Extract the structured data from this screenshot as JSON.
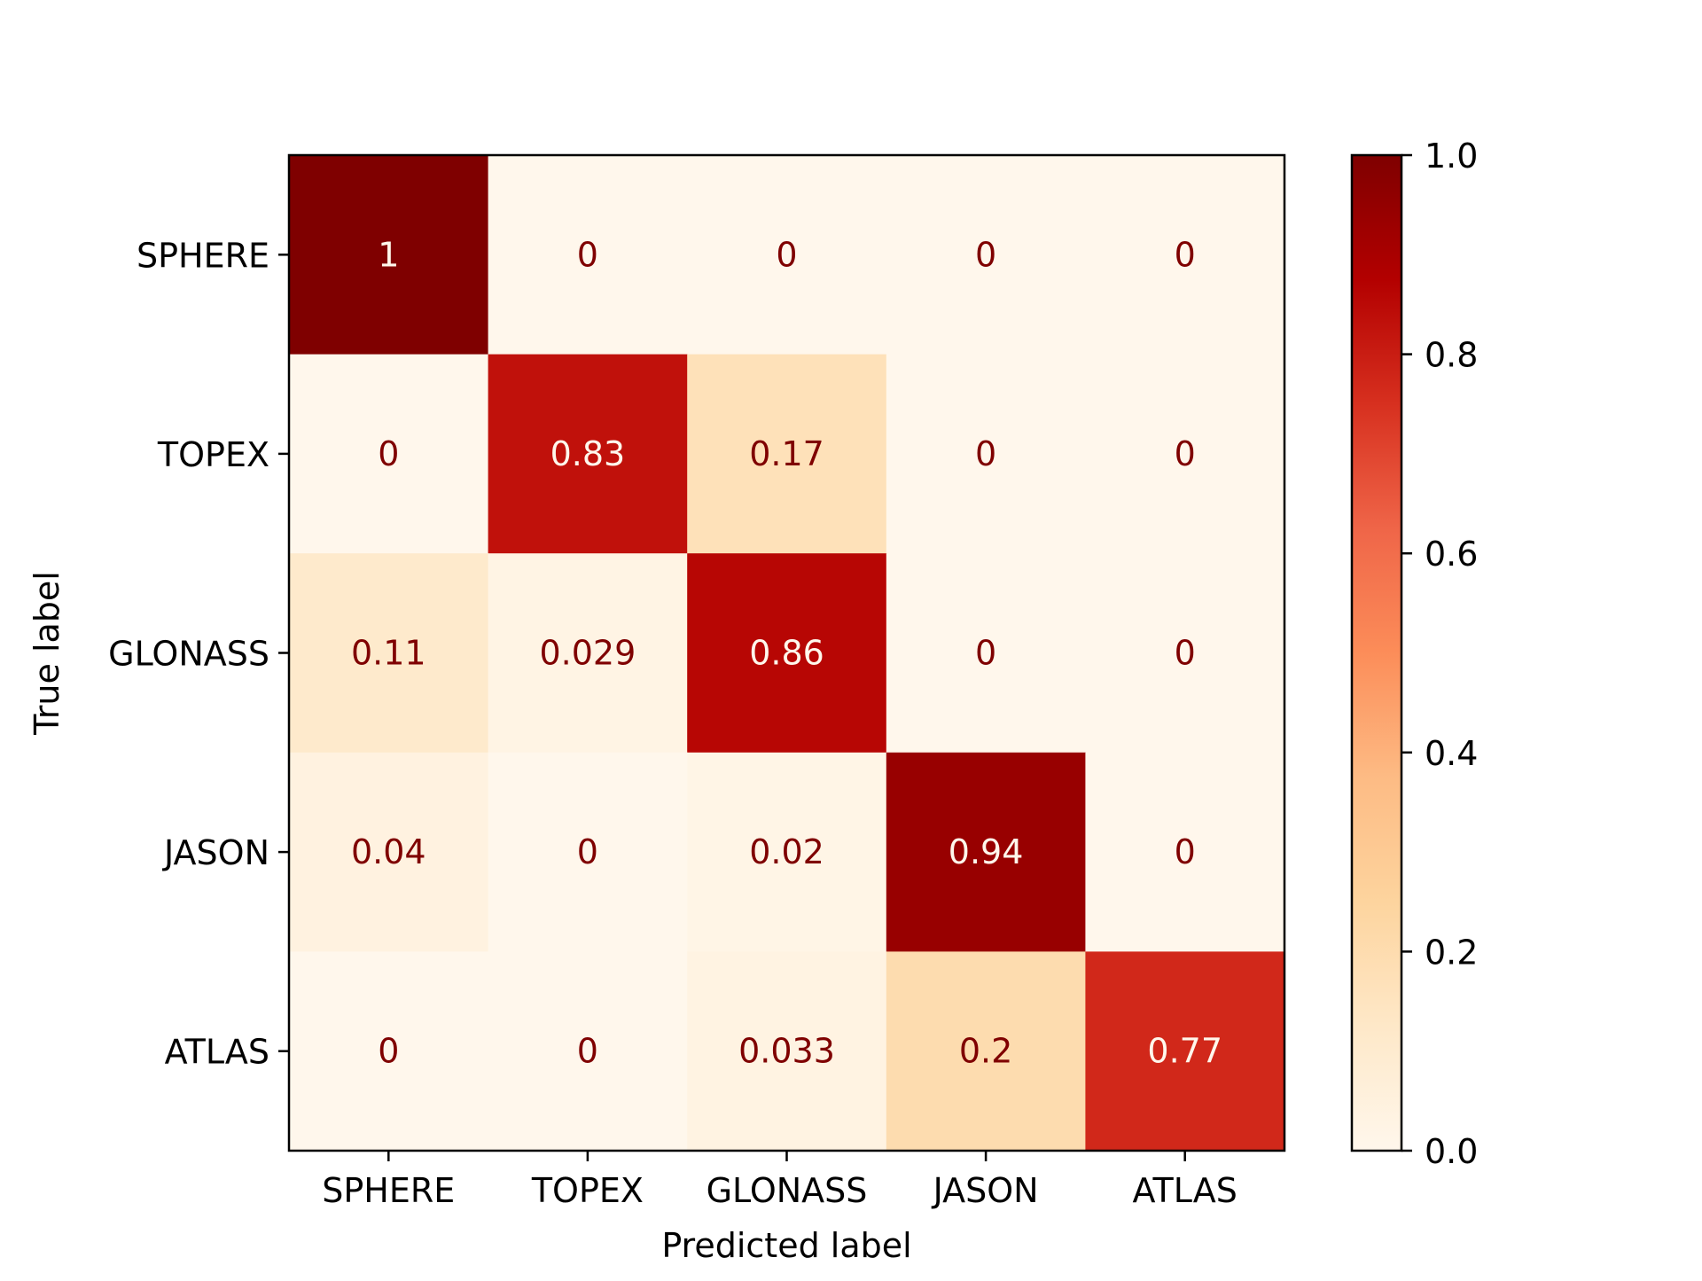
{
  "chart_data": {
    "type": "heatmap",
    "title": "",
    "xlabel": "Predicted label",
    "ylabel": "True label",
    "row_labels": [
      "SPHERE",
      "TOPEX",
      "GLONASS",
      "JASON",
      "ATLAS"
    ],
    "col_labels": [
      "SPHERE",
      "TOPEX",
      "GLONASS",
      "JASON",
      "ATLAS"
    ],
    "values": [
      [
        1,
        0,
        0,
        0,
        0
      ],
      [
        0,
        0.83,
        0.17,
        0,
        0
      ],
      [
        0.11,
        0.029,
        0.86,
        0,
        0
      ],
      [
        0.04,
        0,
        0.02,
        0.94,
        0
      ],
      [
        0,
        0,
        0.033,
        0.2,
        0.77
      ]
    ],
    "cell_text": [
      [
        "1",
        "0",
        "0",
        "0",
        "0"
      ],
      [
        "0",
        "0.83",
        "0.17",
        "0",
        "0"
      ],
      [
        "0.11",
        "0.029",
        "0.86",
        "0",
        "0"
      ],
      [
        "0.04",
        "0",
        "0.02",
        "0.94",
        "0"
      ],
      [
        "0",
        "0",
        "0.033",
        "0.2",
        "0.77"
      ]
    ],
    "colormap": "OrRd",
    "colorbar": {
      "range": [
        0.0,
        1.0
      ],
      "ticks": [
        0.0,
        0.2,
        0.4,
        0.6,
        0.8,
        1.0
      ],
      "tick_labels": [
        "0.0",
        "0.2",
        "0.4",
        "0.6",
        "0.8",
        "1.0"
      ]
    },
    "colors": {
      "dark_text": "#7f0000",
      "light_text": "#fff7ec",
      "frame": "#000000"
    }
  }
}
